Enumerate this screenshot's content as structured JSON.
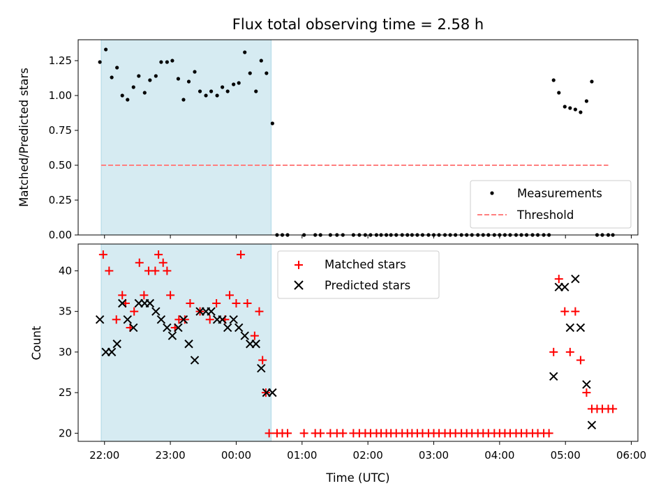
{
  "chart_data": [
    {
      "type": "scatter",
      "title": "Flux total observing time = 2.58 h",
      "xlabel": "",
      "ylabel": "Matched/Predicted stars",
      "xlim": [
        -0.4,
        8.1
      ],
      "ylim": [
        0.0,
        1.4
      ],
      "yticks": [
        0.0,
        0.25,
        0.5,
        0.75,
        1.0,
        1.25
      ],
      "ytick_labels": [
        "0.00",
        "0.25",
        "0.50",
        "0.75",
        "1.00",
        "1.25"
      ],
      "x_unit": "hours after 22:00 UTC",
      "shaded_interval": [
        -0.05,
        2.53
      ],
      "threshold": {
        "name": "Threshold",
        "value": 0.5,
        "x_range": [
          -0.05,
          7.65
        ],
        "color": "#ff7f7f"
      },
      "legend_position": "lower right",
      "series": [
        {
          "name": "Measurements",
          "color": "#000000",
          "x": [
            -0.07,
            0.02,
            0.11,
            0.19,
            0.27,
            0.35,
            0.44,
            0.52,
            0.61,
            0.69,
            0.78,
            0.86,
            0.95,
            1.03,
            1.12,
            1.2,
            1.28,
            1.37,
            1.45,
            1.54,
            1.62,
            1.71,
            1.79,
            1.87,
            1.96,
            2.04,
            2.13,
            2.21,
            2.3,
            2.38,
            2.46,
            2.55,
            2.62,
            2.7,
            2.78,
            3.03,
            3.2,
            3.28,
            3.43,
            3.53,
            3.62,
            3.78,
            3.87,
            3.96,
            4.04,
            4.13,
            4.2,
            4.28,
            4.35,
            4.43,
            4.52,
            4.6,
            4.67,
            4.75,
            4.83,
            4.92,
            5,
            5.08,
            5.17,
            5.25,
            5.33,
            5.42,
            5.5,
            5.58,
            5.67,
            5.75,
            5.83,
            5.92,
            6.0,
            6.08,
            6.16,
            6.25,
            6.33,
            6.41,
            6.5,
            6.58,
            6.67,
            6.75,
            6.82,
            6.9,
            6.99,
            7.07,
            7.15,
            7.23,
            7.32,
            7.4,
            7.48,
            7.56,
            7.65,
            7.72
          ],
          "y": [
            1.24,
            1.33,
            1.13,
            1.2,
            1.0,
            0.97,
            1.06,
            1.14,
            1.02,
            1.11,
            1.14,
            1.24,
            1.24,
            1.25,
            1.12,
            0.97,
            1.1,
            1.17,
            1.03,
            1.0,
            1.03,
            1.0,
            1.06,
            1.03,
            1.08,
            1.09,
            1.31,
            1.16,
            1.03,
            1.25,
            1.16,
            0.8,
            0,
            0,
            0,
            0,
            0,
            0,
            0,
            0,
            0,
            0,
            0,
            0,
            0,
            0,
            0,
            0,
            0,
            0,
            0,
            0,
            0,
            0,
            0,
            0,
            0,
            0,
            0,
            0,
            0,
            0,
            0,
            0,
            0,
            0,
            0,
            0,
            0,
            0,
            0,
            0,
            0,
            0,
            0,
            0,
            0,
            0,
            1.11,
            1.02,
            0.92,
            0.91,
            0.9,
            0.88,
            0.96,
            1.1,
            0,
            0,
            0,
            0
          ]
        }
      ]
    },
    {
      "type": "scatter",
      "title": "",
      "xlabel": "Time (UTC)",
      "ylabel": "Count",
      "xlim": [
        -0.4,
        8.1
      ],
      "ylim": [
        19,
        43.3
      ],
      "yticks": [
        20,
        25,
        30,
        35,
        40
      ],
      "ytick_labels": [
        "20",
        "25",
        "30",
        "35",
        "40"
      ],
      "xticks": [
        0,
        1,
        2,
        3,
        4,
        5,
        6,
        7,
        8
      ],
      "xtick_labels": [
        "22:00",
        "23:00",
        "00:00",
        "01:00",
        "02:00",
        "03:00",
        "04:00",
        "05:00",
        "06:00"
      ],
      "x_unit": "hours after 22:00 UTC",
      "shaded_interval": [
        -0.05,
        2.53
      ],
      "legend_position": "upper center",
      "series": [
        {
          "name": "Matched stars",
          "marker": "plus",
          "color": "#ff0000",
          "x": [
            -0.02,
            0.07,
            0.18,
            0.27,
            0.32,
            0.39,
            0.45,
            0.53,
            0.6,
            0.67,
            0.77,
            0.82,
            0.89,
            0.95,
            1.0,
            1.07,
            1.13,
            1.22,
            1.3,
            1.45,
            1.6,
            1.7,
            1.83,
            1.9,
            2.0,
            2.07,
            2.17,
            2.28,
            2.35,
            2.4,
            2.45,
            2.5,
            2.62,
            2.7,
            2.78,
            3.03,
            3.2,
            3.28,
            3.43,
            3.53,
            3.62,
            3.78,
            3.87,
            3.96,
            4.04,
            4.13,
            4.2,
            4.28,
            4.35,
            4.43,
            4.52,
            4.6,
            4.67,
            4.75,
            4.83,
            4.92,
            5,
            5.08,
            5.17,
            5.25,
            5.33,
            5.42,
            5.5,
            5.58,
            5.67,
            5.75,
            5.83,
            5.92,
            6.0,
            6.08,
            6.16,
            6.25,
            6.33,
            6.41,
            6.5,
            6.58,
            6.67,
            6.75,
            6.82,
            6.9,
            6.99,
            7.07,
            7.15,
            7.23,
            7.32,
            7.4,
            7.48,
            7.56,
            7.65,
            7.72
          ],
          "y": [
            42,
            40,
            34,
            37,
            36,
            33,
            35,
            41,
            37,
            40,
            40,
            42,
            41,
            40,
            37,
            33,
            34,
            34,
            36,
            35,
            34,
            36,
            34,
            37,
            36,
            42,
            36,
            32,
            35,
            29,
            25,
            20,
            20,
            20,
            20,
            20,
            20,
            20,
            20,
            20,
            20,
            20,
            20,
            20,
            20,
            20,
            20,
            20,
            20,
            20,
            20,
            20,
            20,
            20,
            20,
            20,
            20,
            20,
            20,
            20,
            20,
            20,
            20,
            20,
            20,
            20,
            20,
            20,
            20,
            20,
            20,
            20,
            20,
            20,
            20,
            20,
            20,
            20,
            30,
            39,
            35,
            30,
            35,
            29,
            25,
            23,
            23,
            23,
            23,
            23
          ]
        },
        {
          "name": "Predicted stars",
          "marker": "x",
          "color": "#000000",
          "x": [
            -0.07,
            0.02,
            0.11,
            0.19,
            0.27,
            0.35,
            0.44,
            0.52,
            0.61,
            0.69,
            0.78,
            0.86,
            0.95,
            1.03,
            1.12,
            1.2,
            1.28,
            1.37,
            1.45,
            1.54,
            1.62,
            1.71,
            1.79,
            1.87,
            1.96,
            2.04,
            2.13,
            2.21,
            2.3,
            2.38,
            2.46,
            2.55,
            6.82,
            6.9,
            6.99,
            7.07,
            7.15,
            7.23,
            7.32,
            7.4
          ],
          "y": [
            34,
            30,
            30,
            31,
            36,
            34,
            33,
            36,
            36,
            36,
            35,
            34,
            33,
            32,
            33,
            34,
            31,
            29,
            35,
            35,
            35,
            34,
            34,
            33,
            34,
            33,
            32,
            31,
            31,
            28,
            25,
            25,
            27,
            38,
            38,
            33,
            39,
            33,
            26,
            21
          ]
        }
      ]
    }
  ],
  "legends": {
    "top": [
      "Measurements",
      "Threshold"
    ],
    "bottom": [
      "Matched stars",
      "Predicted stars"
    ]
  }
}
